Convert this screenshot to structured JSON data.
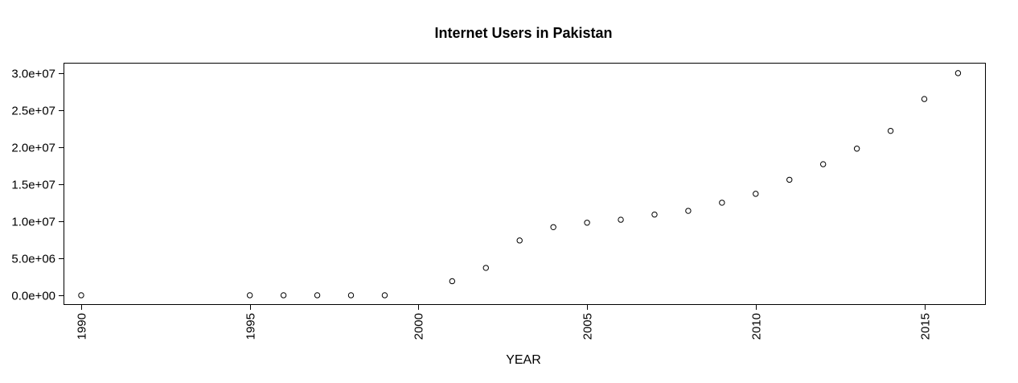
{
  "chart_data": {
    "type": "scatter",
    "title": "Internet Users in Pakistan",
    "xlabel": "YEAR",
    "ylabel": "",
    "xlim": [
      1989.5,
      2016.8
    ],
    "ylim": [
      -1200000,
      31400000
    ],
    "xticks": [
      1990,
      1995,
      2000,
      2005,
      2010,
      2015
    ],
    "xtick_labels": [
      "1990",
      "1995",
      "2000",
      "2005",
      "2010",
      "2015"
    ],
    "yticks": [
      0,
      5000000,
      10000000,
      15000000,
      20000000,
      25000000,
      30000000
    ],
    "ytick_labels": [
      "0.0e+00",
      "5.0e+06",
      "1.0e+07",
      "1.5e+07",
      "2.0e+07",
      "2.5e+07",
      "3.0e+07"
    ],
    "grid": false,
    "points": [
      {
        "x": 1990,
        "y": 0
      },
      {
        "x": 1995,
        "y": 0
      },
      {
        "x": 1996,
        "y": 0
      },
      {
        "x": 1997,
        "y": 0
      },
      {
        "x": 1998,
        "y": 0
      },
      {
        "x": 1999,
        "y": 0
      },
      {
        "x": 2001,
        "y": 1900000
      },
      {
        "x": 2002,
        "y": 3700000
      },
      {
        "x": 2003,
        "y": 7400000
      },
      {
        "x": 2004,
        "y": 9200000
      },
      {
        "x": 2005,
        "y": 9800000
      },
      {
        "x": 2006,
        "y": 10200000
      },
      {
        "x": 2007,
        "y": 10900000
      },
      {
        "x": 2008,
        "y": 11400000
      },
      {
        "x": 2009,
        "y": 12500000
      },
      {
        "x": 2010,
        "y": 13700000
      },
      {
        "x": 2011,
        "y": 15600000
      },
      {
        "x": 2012,
        "y": 17700000
      },
      {
        "x": 2013,
        "y": 19800000
      },
      {
        "x": 2014,
        "y": 22200000
      },
      {
        "x": 2015,
        "y": 26500000
      },
      {
        "x": 2016,
        "y": 30000000
      }
    ]
  }
}
